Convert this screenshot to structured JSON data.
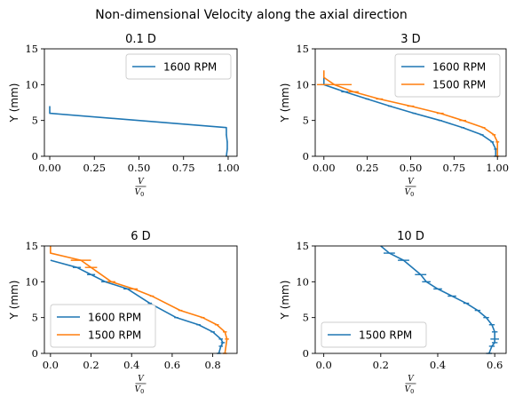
{
  "suptitle": "Non-dimensional Velocity along the axial direction",
  "colors": {
    "blue": "#1f77b4",
    "orange": "#ff7f0e",
    "axis": "#000000",
    "legend_border": "#cccccc"
  },
  "chart_data": [
    {
      "type": "line",
      "title": "0.1 D",
      "ylabel": "Y (mm)",
      "xlabel_num": "V",
      "xlabel_den": "V",
      "xlabel_den_sub": "0",
      "xlim": [
        -0.03,
        1.05
      ],
      "ylim": [
        0,
        15
      ],
      "xticks": [
        0.0,
        0.25,
        0.5,
        0.75,
        1.0
      ],
      "xtick_labels": [
        "0.00",
        "0.25",
        "0.50",
        "0.75",
        "1.00"
      ],
      "yticks": [
        0,
        5,
        10,
        15
      ],
      "ytick_labels": [
        "0",
        "5",
        "10",
        "15"
      ],
      "legend_position": "upper right",
      "series": [
        {
          "name": "1600 RPM",
          "color": "#1f77b4",
          "x": [
            0.0,
            0.0,
            0.0,
            0.99,
            0.99,
            0.995,
            0.995,
            0.99
          ],
          "y": [
            7.0,
            6.5,
            6.0,
            4.0,
            3.0,
            2.0,
            1.0,
            0.0
          ],
          "xerr": [
            0,
            0,
            0,
            0,
            0.003,
            0.003,
            0.003,
            0.003
          ]
        }
      ]
    },
    {
      "type": "line",
      "title": "3 D",
      "ylabel": "Y (mm)",
      "xlabel_num": "V",
      "xlabel_den": "V",
      "xlabel_den_sub": "0",
      "xlim": [
        -0.05,
        1.05
      ],
      "ylim": [
        0,
        15
      ],
      "xticks": [
        0.0,
        0.25,
        0.5,
        0.75,
        1.0
      ],
      "xtick_labels": [
        "0.00",
        "0.25",
        "0.50",
        "0.75",
        "1.00"
      ],
      "yticks": [
        0,
        5,
        10,
        15
      ],
      "ytick_labels": [
        "0",
        "5",
        "10",
        "15"
      ],
      "legend_position": "upper right",
      "series": [
        {
          "name": "1600 RPM",
          "color": "#1f77b4",
          "x": [
            0.0,
            0.0,
            0.12,
            0.25,
            0.38,
            0.52,
            0.67,
            0.8,
            0.91,
            0.97,
            0.99,
            0.99
          ],
          "y": [
            11.0,
            10.0,
            9.0,
            8.0,
            7.0,
            6.0,
            5.0,
            4.0,
            3.0,
            2.0,
            1.0,
            0.0
          ],
          "xerr": [
            0,
            0.02,
            0.02,
            0.01,
            0.01,
            0.01,
            0.01,
            0.01,
            0.01,
            0.01,
            0.01,
            0.01
          ]
        },
        {
          "name": "1500 RPM",
          "color": "#ff7f0e",
          "x": [
            0.0,
            0.0,
            0.06,
            0.17,
            0.32,
            0.5,
            0.67,
            0.8,
            0.92,
            0.98,
            1.0,
            1.0
          ],
          "y": [
            12.0,
            11.0,
            10.0,
            9.0,
            8.0,
            7.0,
            6.0,
            5.0,
            4.0,
            3.0,
            2.0,
            0.0
          ],
          "xerr": [
            0,
            0,
            0.1,
            0.03,
            0.02,
            0.02,
            0.02,
            0.02,
            0.01,
            0.01,
            0.01,
            0.01
          ]
        }
      ]
    },
    {
      "type": "line",
      "title": "6 D",
      "ylabel": "Y (mm)",
      "xlabel_num": "V",
      "xlabel_den": "V",
      "xlabel_den_sub": "0",
      "xlim": [
        -0.03,
        0.92
      ],
      "ylim": [
        0,
        15
      ],
      "xticks": [
        0.0,
        0.2,
        0.4,
        0.6,
        0.8
      ],
      "xtick_labels": [
        "0.0",
        "0.2",
        "0.4",
        "0.6",
        "0.8"
      ],
      "yticks": [
        0,
        5,
        10,
        15
      ],
      "ytick_labels": [
        "0",
        "5",
        "10",
        "15"
      ],
      "legend_position": "lower left",
      "series": [
        {
          "name": "1600 RPM",
          "color": "#1f77b4",
          "x": [
            0.0,
            0.13,
            0.2,
            0.27,
            0.38,
            0.49,
            0.62,
            0.73,
            0.8,
            0.84,
            0.85,
            0.84,
            0.83
          ],
          "y": [
            13.0,
            12.0,
            11.0,
            10.0,
            9.0,
            7.0,
            5.0,
            4.0,
            3.0,
            2.0,
            1.5,
            1.0,
            0.0
          ],
          "xerr": [
            0,
            0.02,
            0.02,
            0.02,
            0.02,
            0.01,
            0.01,
            0.01,
            0.01,
            0.01,
            0.01,
            0.01,
            0.01
          ]
        },
        {
          "name": "1500 RPM",
          "color": "#ff7f0e",
          "x": [
            0.0,
            0.0,
            0.15,
            0.2,
            0.3,
            0.41,
            0.5,
            0.64,
            0.75,
            0.82,
            0.86,
            0.87,
            0.86
          ],
          "y": [
            15.0,
            14.0,
            13.0,
            12.0,
            10.0,
            9.0,
            8.0,
            6.0,
            5.0,
            4.0,
            3.0,
            2.0,
            0.0
          ],
          "xerr": [
            0,
            0,
            0.05,
            0.03,
            0.02,
            0.02,
            0.01,
            0.01,
            0.01,
            0.01,
            0.01,
            0.01,
            0.01
          ]
        }
      ]
    },
    {
      "type": "line",
      "title": "10 D",
      "ylabel": "Y (mm)",
      "xlabel_num": "V",
      "xlabel_den": "V",
      "xlabel_den_sub": "0",
      "xlim": [
        -0.03,
        0.64
      ],
      "ylim": [
        0,
        15
      ],
      "xticks": [
        0.0,
        0.2,
        0.4,
        0.6
      ],
      "xtick_labels": [
        "0.0",
        "0.2",
        "0.4",
        "0.6"
      ],
      "yticks": [
        0,
        5,
        10,
        15
      ],
      "ytick_labels": [
        "0",
        "5",
        "10",
        "15"
      ],
      "legend_position": "lower left",
      "series": [
        {
          "name": "1500 RPM",
          "color": "#1f77b4",
          "x": [
            0.2,
            0.23,
            0.28,
            0.34,
            0.36,
            0.4,
            0.45,
            0.5,
            0.54,
            0.57,
            0.59,
            0.6,
            0.6,
            0.6,
            0.59,
            0.58
          ],
          "y": [
            15.0,
            14.0,
            13.0,
            11.0,
            10.0,
            9.0,
            8.0,
            7.0,
            6.0,
            5.0,
            4.0,
            3.0,
            2.0,
            1.5,
            1.0,
            0.0
          ],
          "xerr": [
            0,
            0.02,
            0.02,
            0.02,
            0.015,
            0.015,
            0.015,
            0.01,
            0.01,
            0.01,
            0.01,
            0.01,
            0.015,
            0.01,
            0.01,
            0.01
          ]
        }
      ]
    }
  ]
}
